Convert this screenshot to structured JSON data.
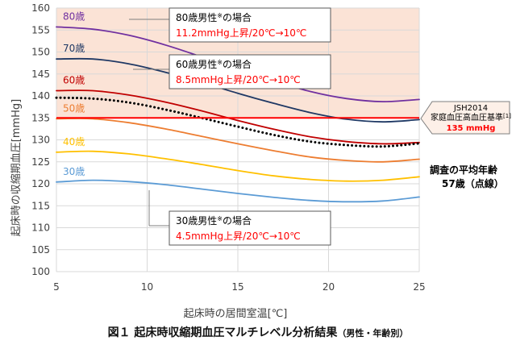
{
  "chart_data": {
    "type": "line",
    "xlabel": "起床時の居間室温[℃]",
    "ylabel": "起床時の収縮期血圧[mmHg]",
    "xlim": [
      5,
      25
    ],
    "ylim": [
      100,
      160
    ],
    "xticks": [
      "5",
      "10",
      "15",
      "20",
      "25"
    ],
    "yticks": [
      "100",
      "105",
      "110",
      "115",
      "120",
      "125",
      "130",
      "135",
      "140",
      "145",
      "150",
      "155",
      "160"
    ],
    "x": [
      5,
      7,
      9,
      11,
      13,
      15,
      17,
      19,
      21,
      23,
      25
    ],
    "series": [
      {
        "name": "80歳",
        "color": "#7030a0",
        "dash": false,
        "values": [
          155.7,
          155.2,
          153.8,
          151.6,
          148.9,
          146.1,
          143.4,
          141.0,
          139.4,
          138.7,
          139.2
        ]
      },
      {
        "name": "70歳",
        "color": "#1f3864",
        "dash": false,
        "values": [
          148.4,
          148.4,
          147.3,
          145.4,
          143.1,
          140.6,
          138.3,
          136.2,
          134.7,
          134.1,
          134.6
        ]
      },
      {
        "name": "60歳",
        "color": "#c00000",
        "dash": false,
        "values": [
          141.2,
          141.2,
          140.2,
          138.6,
          136.6,
          134.4,
          132.4,
          130.7,
          129.6,
          129.1,
          129.4
        ]
      },
      {
        "name": "",
        "color": "#000000",
        "dash": true,
        "values": [
          139.6,
          139.4,
          138.5,
          136.9,
          135.0,
          133.0,
          131.1,
          129.6,
          128.8,
          128.5,
          129.2
        ]
      },
      {
        "name": "50歳",
        "color": "#ed7d31",
        "dash": false,
        "values": [
          134.8,
          134.8,
          133.9,
          132.5,
          130.8,
          129.1,
          127.5,
          126.1,
          125.3,
          125.0,
          125.6
        ]
      },
      {
        "name": "40歳",
        "color": "#ffc000",
        "dash": false,
        "values": [
          127.2,
          127.4,
          126.8,
          125.7,
          124.4,
          123.0,
          121.8,
          121.0,
          120.6,
          120.8,
          121.6
        ]
      },
      {
        "name": "30歳",
        "color": "#5b9bd5",
        "dash": false,
        "values": [
          120.4,
          120.8,
          120.5,
          119.8,
          118.8,
          117.8,
          116.9,
          116.2,
          115.9,
          116.1,
          117.0
        ]
      }
    ],
    "threshold": {
      "value": 135,
      "color": "#ff0000"
    },
    "shade": {
      "from": 135,
      "to": 160,
      "color": "#fbe3d6"
    },
    "grid": true
  },
  "annotations": {
    "a80": {
      "line1": "80歳男性",
      "mark": "※",
      "line1b": "の場合",
      "line2": "11.2mmHg上昇/20℃→10℃"
    },
    "a60": {
      "line1": "60歳男性",
      "mark": "※",
      "line1b": "の場合",
      "line2": "8.5mmHg上昇/20℃→10℃"
    },
    "a30": {
      "line1": "30歳男性",
      "mark": "※",
      "line1b": "の場合",
      "line2": "4.5mmHg上昇/20℃→10℃"
    },
    "jsh": {
      "line1": "JSH2014",
      "line2": "家庭血圧高血圧基準",
      "ref": "[1]",
      "line3": "135 mmHg"
    },
    "avg": {
      "line1": "調査の平均年齢",
      "line2": "57歳（点線）"
    }
  },
  "caption": {
    "main": "図１ 起床時収縮期血圧マルチレベル分析結果",
    "sub": "（男性・年齢別）"
  }
}
